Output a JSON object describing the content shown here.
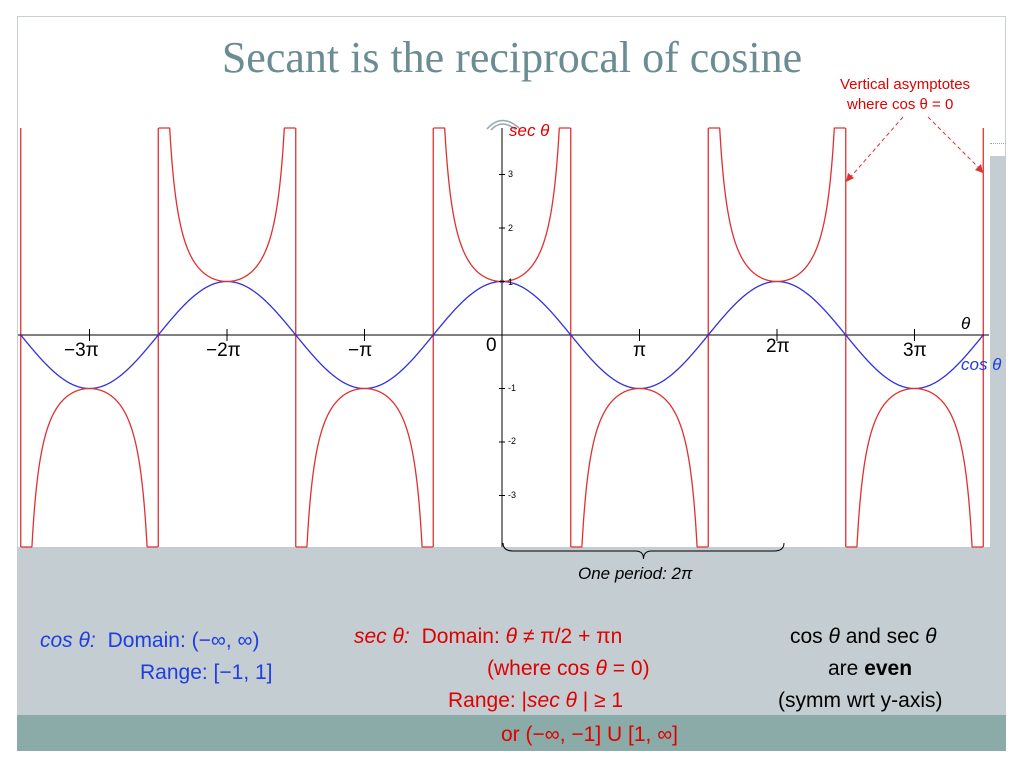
{
  "title": "Secant is the reciprocal of cosine",
  "colors": {
    "title": "#6a8c92",
    "cos_curve": "#3030e0",
    "sec_curve": "#e03030",
    "asymptote": "#e03030",
    "cos_text": "#1f3de0",
    "sec_text": "#e00000",
    "band_light": "#c3cdd2",
    "band_dark": "#8aaba8"
  },
  "annotation": {
    "line1": "Vertical asymptotes",
    "line2": "where cos θ = 0"
  },
  "axis_labels": {
    "y": "sec θ",
    "x": "θ",
    "cos_curve": "cos θ",
    "origin": "0"
  },
  "x_ticks": [
    "−3π",
    "−2π",
    "−π",
    "π",
    "2π",
    "3π"
  ],
  "y_ticks": [
    "3",
    "2",
    "1",
    "-1",
    "-2",
    "-3"
  ],
  "period_label": "One period: 2π",
  "cos_info": {
    "name": "cos θ:",
    "domain": "Domain: (−∞, ∞)",
    "range": "Range: [−1, 1]"
  },
  "sec_info": {
    "name": "sec θ:",
    "domain_prefix": "Domain: ",
    "domain_var": "θ",
    "domain_suffix": " ≠ π/2 + πn",
    "where_prefix": "(where cos ",
    "where_var": "θ",
    "where_suffix": " = 0)",
    "range_prefix": "Range: |",
    "range_var": "sec θ",
    "range_suffix": " | ≥ 1",
    "range_alt": "or (−∞, −1] U [1, ∞]"
  },
  "even_note": {
    "l1_a": "cos ",
    "l1_var1": "θ",
    "l1_b": " and sec ",
    "l1_var2": "θ",
    "l2_a": "are ",
    "l2_bold": "even",
    "l3": "(symm wrt y-axis)"
  },
  "chart_data": {
    "type": "line",
    "title": "Secant is the reciprocal of cosine",
    "xlabel": "θ",
    "ylabel": "sec θ",
    "xlim": [
      -3.5,
      3.5
    ],
    "x_units": "π radians",
    "ylim": [
      -3.9,
      3.9
    ],
    "grid": false,
    "x_tick_values": [
      -3,
      -2,
      -1,
      1,
      2,
      3
    ],
    "x_tick_labels": [
      "−3π",
      "−2π",
      "−π",
      "π",
      "2π",
      "3π"
    ],
    "y_tick_values": [
      3,
      2,
      1,
      -1,
      -2,
      -3
    ],
    "series": [
      {
        "name": "cos θ",
        "function": "cos",
        "color": "#3030e0",
        "points": [
          [
            -3,
            -1
          ],
          [
            -2.5,
            0
          ],
          [
            -2,
            1
          ],
          [
            -1.5,
            0
          ],
          [
            -1,
            -1
          ],
          [
            -0.5,
            0
          ],
          [
            0,
            1
          ],
          [
            0.5,
            0
          ],
          [
            1,
            -1
          ],
          [
            1.5,
            0
          ],
          [
            2,
            1
          ],
          [
            2.5,
            0
          ],
          [
            3,
            -1
          ]
        ]
      },
      {
        "name": "sec θ",
        "function": "sec",
        "color": "#e03030",
        "points": [
          [
            -3,
            -1
          ],
          [
            -2,
            1
          ],
          [
            -1,
            -1
          ],
          [
            0,
            1
          ],
          [
            1,
            -1
          ],
          [
            2,
            1
          ],
          [
            3,
            -1
          ]
        ]
      }
    ],
    "asymptotes_x": [
      -3.5,
      -2.5,
      -1.5,
      -0.5,
      0.5,
      1.5,
      2.5,
      3.5
    ],
    "period": 2,
    "annotations": [
      "Vertical asymptotes where cos θ = 0",
      "One period: 2π"
    ]
  }
}
